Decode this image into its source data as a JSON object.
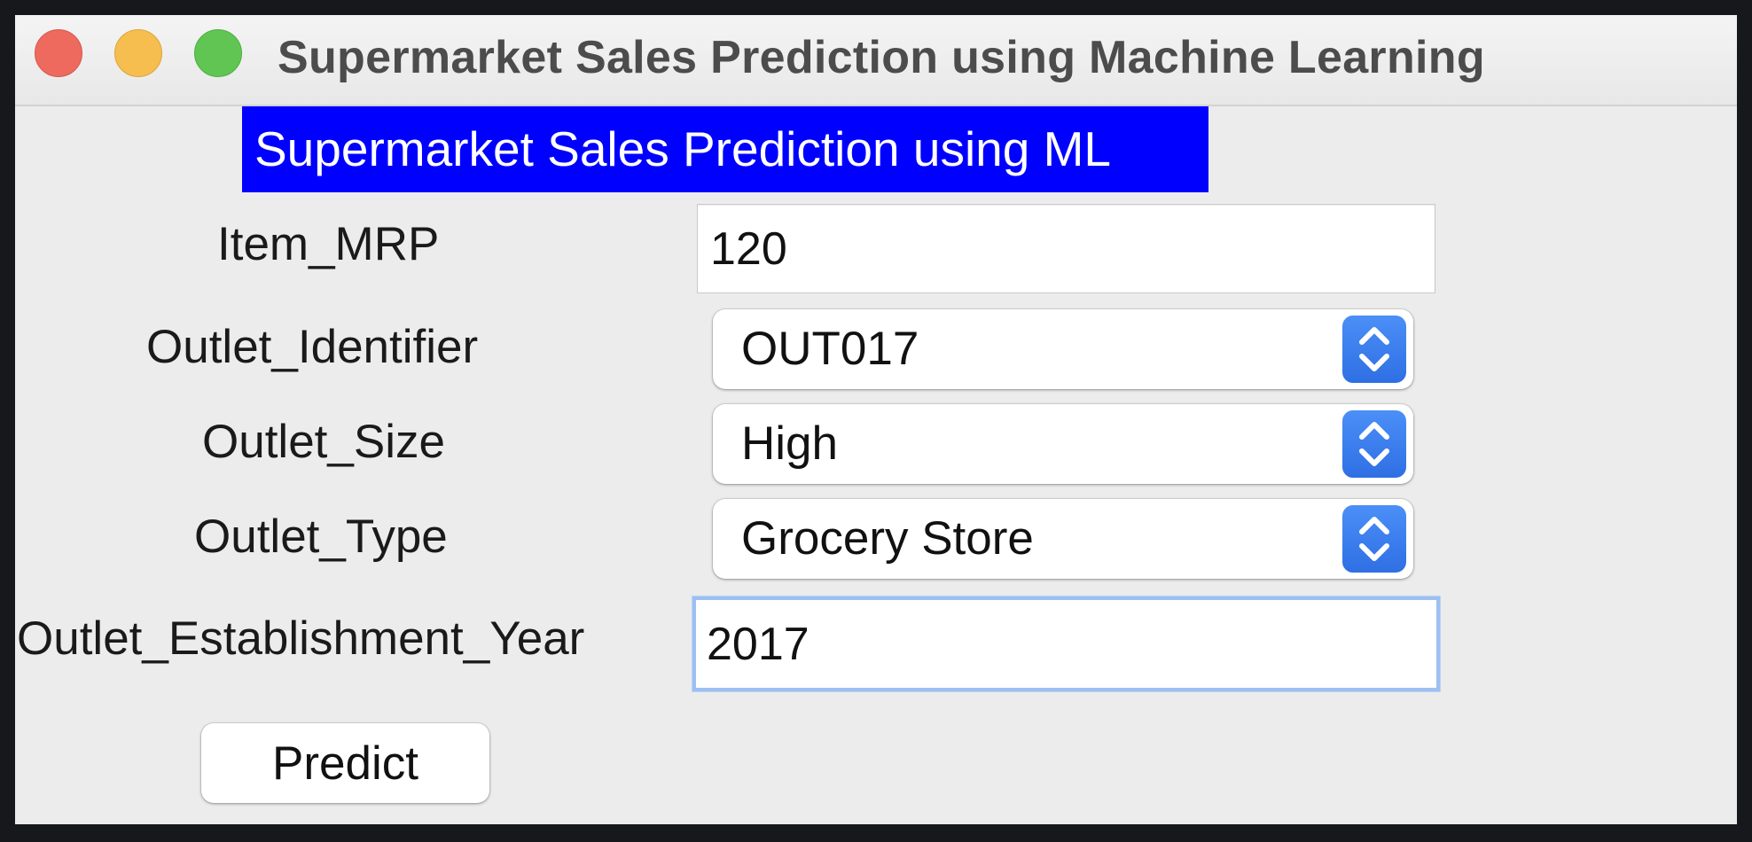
{
  "window": {
    "title": "Supermarket Sales Prediction using Machine Learning"
  },
  "header": {
    "banner_text": "Supermarket Sales Prediction using ML",
    "banner_color": "#0000ff"
  },
  "form": {
    "item_mrp": {
      "label": "Item_MRP",
      "value": "120"
    },
    "outlet_identifier": {
      "label": "Outlet_Identifier",
      "selected": "OUT017"
    },
    "outlet_size": {
      "label": "Outlet_Size",
      "selected": "High"
    },
    "outlet_type": {
      "label": "Outlet_Type",
      "selected": "Grocery Store"
    },
    "outlet_establishment_year": {
      "label": "Outlet_Establishment_Year",
      "value": "2017"
    },
    "predict_label": "Predict"
  },
  "icons": {
    "select_arrows": "chevron-up-down-icon",
    "window_controls": [
      "close-icon",
      "minimize-icon",
      "zoom-icon"
    ]
  }
}
